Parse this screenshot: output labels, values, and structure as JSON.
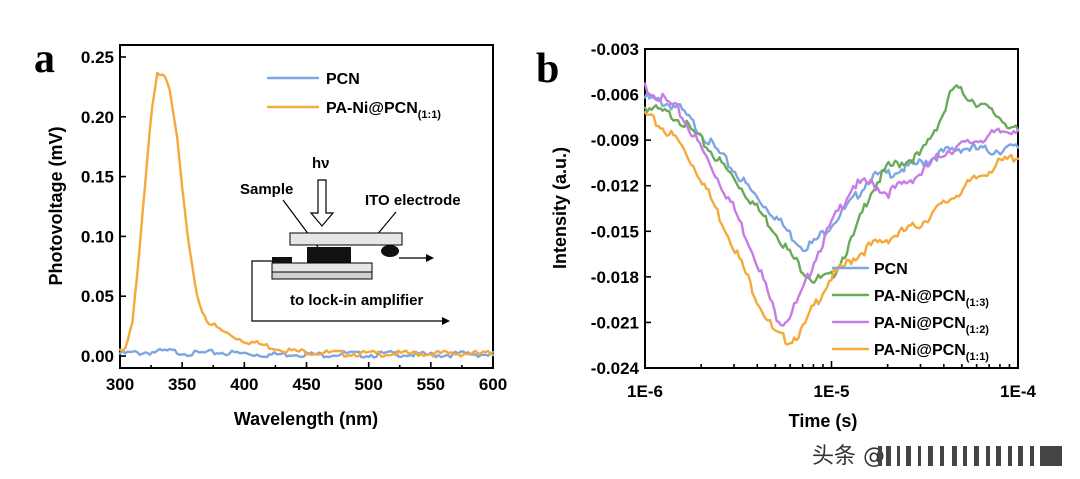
{
  "chart_data": [
    {
      "panel": "a",
      "type": "line",
      "xlabel": "Wavelength (nm)",
      "ylabel": "Photovoltage (mV)",
      "xlim": [
        300,
        600
      ],
      "ylim": [
        -0.01,
        0.26
      ],
      "xticks": [
        300,
        350,
        400,
        450,
        500,
        550,
        600
      ],
      "xtick_labels": [
        "300",
        "350",
        "400",
        "450",
        "500",
        "550",
        "600"
      ],
      "yticks": [
        0.0,
        0.05,
        0.1,
        0.15,
        0.2,
        0.25
      ],
      "ytick_labels": [
        "0.00",
        "0.05",
        "0.10",
        "0.15",
        "0.20",
        "0.25"
      ],
      "series": [
        {
          "name": "PCN",
          "color": "#7ea6e0",
          "x": [
            300,
            320,
            340,
            360,
            380,
            400,
            420,
            440,
            460,
            480,
            500,
            520,
            540,
            560,
            580,
            600
          ],
          "values": [
            0.002,
            0.003,
            0.004,
            0.002,
            0.003,
            0.002,
            0.001,
            0.002,
            0.001,
            0.002,
            0.001,
            0.002,
            0.001,
            0.001,
            0.002,
            0.001
          ]
        },
        {
          "name": "PA-Ni@PCN",
          "sub": "(1:1)",
          "color": "#f5a93a",
          "x": [
            300,
            305,
            310,
            315,
            320,
            325,
            330,
            335,
            340,
            345,
            350,
            355,
            360,
            365,
            370,
            380,
            390,
            400,
            420,
            440,
            460,
            480,
            500,
            550,
            600
          ],
          "values": [
            0.005,
            0.008,
            0.03,
            0.08,
            0.14,
            0.2,
            0.235,
            0.238,
            0.225,
            0.19,
            0.14,
            0.095,
            0.06,
            0.04,
            0.03,
            0.022,
            0.017,
            0.013,
            0.008,
            0.004,
            0.003,
            0.002,
            0.002,
            0.002,
            0.002
          ]
        }
      ],
      "inset": {
        "hv": "hν",
        "sample": "Sample",
        "ito": "ITO electrode",
        "amplifier": "to lock-in amplifier"
      }
    },
    {
      "panel": "b",
      "type": "line",
      "xscale": "log",
      "xlabel": "Time (s)",
      "ylabel": "Intensity (a.u.)",
      "xlim": [
        1e-06,
        0.0001
      ],
      "ylim": [
        -0.024,
        -0.003
      ],
      "xticks": [
        1e-06,
        1e-05,
        0.0001
      ],
      "xtick_labels": [
        "1E-6",
        "1E-5",
        "1E-4"
      ],
      "yticks": [
        -0.003,
        -0.006,
        -0.009,
        -0.012,
        -0.015,
        -0.018,
        -0.021,
        -0.024
      ],
      "ytick_labels": [
        "-0.003",
        "-0.006",
        "-0.009",
        "-0.012",
        "-0.015",
        "-0.018",
        "-0.021",
        "-0.024"
      ],
      "series": [
        {
          "name": "PCN",
          "sub": "",
          "color": "#7ea6e0",
          "x": [
            1e-06,
            1.5e-06,
            2e-06,
            3e-06,
            4e-06,
            5e-06,
            6e-06,
            7e-06,
            8e-06,
            1e-05,
            1.3e-05,
            1.6e-05,
            2e-05,
            3e-05,
            4e-05,
            5e-05,
            7e-05,
            0.0001
          ],
          "values": [
            -0.0062,
            -0.0068,
            -0.0085,
            -0.011,
            -0.0128,
            -0.014,
            -0.0152,
            -0.016,
            -0.0158,
            -0.0145,
            -0.013,
            -0.0115,
            -0.0112,
            -0.0105,
            -0.0098,
            -0.0095,
            -0.0097,
            -0.0095
          ]
        },
        {
          "name": "PA-Ni@PCN",
          "sub": "(1:3)",
          "color": "#6aaa5a",
          "x": [
            1e-06,
            1.5e-06,
            2e-06,
            3e-06,
            4e-06,
            5e-06,
            6e-06,
            7e-06,
            8e-06,
            1e-05,
            1.3e-05,
            1.6e-05,
            2e-05,
            3e-05,
            4e-05,
            4.5e-05,
            6e-05,
            8e-05,
            0.0001
          ],
          "values": [
            -0.0068,
            -0.0075,
            -0.009,
            -0.0115,
            -0.0135,
            -0.015,
            -0.0165,
            -0.0175,
            -0.0182,
            -0.018,
            -0.0155,
            -0.0125,
            -0.0108,
            -0.01,
            -0.0072,
            -0.0055,
            -0.0065,
            -0.0075,
            -0.0085
          ]
        },
        {
          "name": "PA-Ni@PCN",
          "sub": "(1:2)",
          "color": "#c77de6",
          "x": [
            1e-06,
            1.5e-06,
            2e-06,
            3e-06,
            4e-06,
            5e-06,
            5.5e-06,
            6e-06,
            7e-06,
            8e-06,
            1e-05,
            1.3e-05,
            1.6e-05,
            2e-05,
            3e-05,
            4e-05,
            6e-05,
            8e-05,
            0.0001
          ],
          "values": [
            -0.0055,
            -0.007,
            -0.0095,
            -0.0135,
            -0.017,
            -0.0205,
            -0.021,
            -0.0205,
            -0.019,
            -0.017,
            -0.0145,
            -0.012,
            -0.0118,
            -0.0125,
            -0.0112,
            -0.0098,
            -0.009,
            -0.0085,
            -0.0082
          ]
        },
        {
          "name": "PA-Ni@PCN",
          "sub": "(1:1)",
          "color": "#f5a93a",
          "x": [
            1e-06,
            1.5e-06,
            2e-06,
            3e-06,
            4e-06,
            5e-06,
            6e-06,
            7e-06,
            8e-06,
            1e-05,
            1.3e-05,
            1.6e-05,
            2e-05,
            3e-05,
            4e-05,
            6e-05,
            8e-05,
            0.0001
          ],
          "values": [
            -0.0073,
            -0.009,
            -0.0115,
            -0.016,
            -0.0195,
            -0.0218,
            -0.0222,
            -0.0215,
            -0.02,
            -0.018,
            -0.0168,
            -0.016,
            -0.0155,
            -0.0145,
            -0.0132,
            -0.0115,
            -0.0105,
            -0.01
          ]
        }
      ]
    }
  ],
  "watermark": "头条 @"
}
